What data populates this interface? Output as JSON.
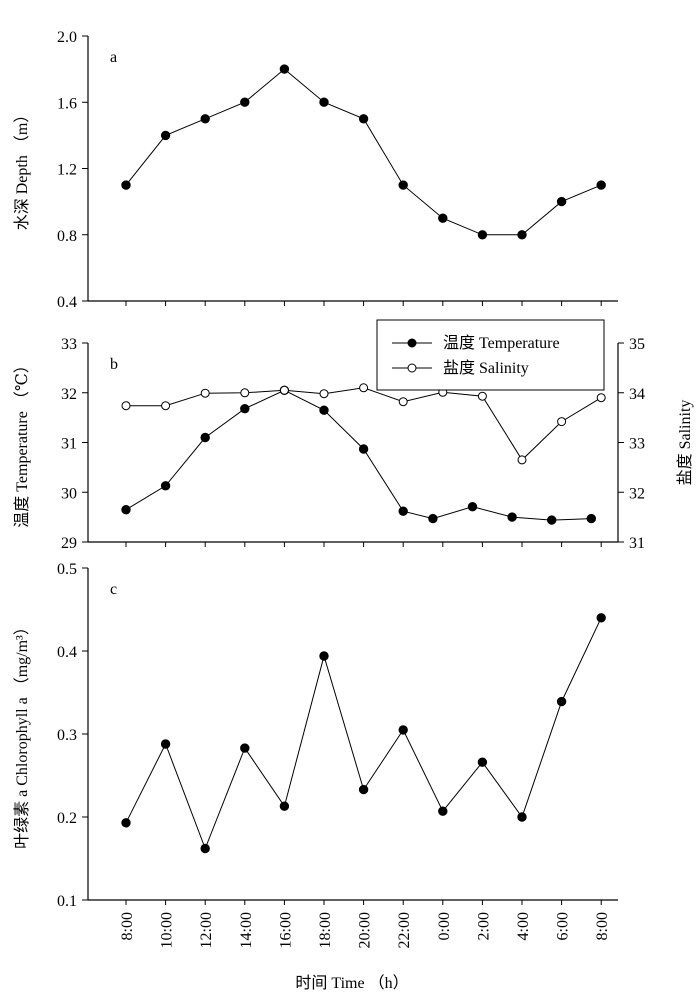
{
  "xlabel": "时间  Time （h）",
  "x_categories": [
    "8:00",
    "10:00",
    "12:00",
    "14:00",
    "16:00",
    "18:00",
    "20:00",
    "22:00",
    "0:00",
    "2:00",
    "4:00",
    "6:00",
    "8:00"
  ],
  "chart_data": [
    {
      "panel": "a",
      "type": "line",
      "ylabel": "水深  Depth （m）",
      "ylim": [
        0.4,
        2.0
      ],
      "yticks": [
        "0.4",
        "0.8",
        "1.2",
        "1.6",
        "2.0"
      ],
      "series": [
        {
          "marker": "filled-circle",
          "points": [
            {
              "x": 0,
              "y": 1.1
            },
            {
              "x": 1,
              "y": 1.4
            },
            {
              "x": 2,
              "y": 1.5
            },
            {
              "x": 3,
              "y": 1.6
            },
            {
              "x": 4,
              "y": 1.8
            },
            {
              "x": 5,
              "y": 1.6
            },
            {
              "x": 6,
              "y": 1.5
            },
            {
              "x": 7,
              "y": 1.1
            },
            {
              "x": 8,
              "y": 0.9
            },
            {
              "x": 9,
              "y": 0.8
            },
            {
              "x": 10,
              "y": 0.8
            },
            {
              "x": 11,
              "y": 1.0
            },
            {
              "x": 12,
              "y": 1.1
            }
          ]
        }
      ]
    },
    {
      "panel": "b",
      "type": "line",
      "ylabel": "温度  Temperature （℃）",
      "ylim": [
        29,
        33
      ],
      "yticks": [
        "29",
        "30",
        "31",
        "32",
        "33"
      ],
      "y2label": "盐度  Salinity",
      "y2lim": [
        31,
        35
      ],
      "y2ticks": [
        "31",
        "32",
        "33",
        "34",
        "35"
      ],
      "legend_position": "top-right",
      "series": [
        {
          "name": "温度  Temperature",
          "marker": "filled-circle",
          "axis": "left",
          "points": [
            {
              "x": 0,
              "y": 29.65
            },
            {
              "x": 1,
              "y": 30.13
            },
            {
              "x": 2,
              "y": 31.1
            },
            {
              "x": 3,
              "y": 31.68
            },
            {
              "x": 4,
              "y": 32.05
            },
            {
              "x": 5,
              "y": 31.65
            },
            {
              "x": 6,
              "y": 30.87
            },
            {
              "x": 7,
              "y": 29.62
            },
            {
              "x": 7.75,
              "y": 29.47
            },
            {
              "x": 8.75,
              "y": 29.71
            },
            {
              "x": 9.75,
              "y": 29.5
            },
            {
              "x": 10.75,
              "y": 29.44
            },
            {
              "x": 11.75,
              "y": 29.47
            }
          ]
        },
        {
          "name": "盐度  Salinity",
          "marker": "open-circle",
          "axis": "right",
          "points": [
            {
              "x": 0,
              "y": 33.74
            },
            {
              "x": 1,
              "y": 33.74
            },
            {
              "x": 2,
              "y": 33.99
            },
            {
              "x": 3,
              "y": 34.0
            },
            {
              "x": 4,
              "y": 34.05
            },
            {
              "x": 5,
              "y": 33.98
            },
            {
              "x": 6,
              "y": 34.1
            },
            {
              "x": 7,
              "y": 33.82
            },
            {
              "x": 8,
              "y": 34.01
            },
            {
              "x": 9,
              "y": 33.93
            },
            {
              "x": 10,
              "y": 32.65
            },
            {
              "x": 11,
              "y": 33.42
            },
            {
              "x": 12,
              "y": 33.9
            }
          ]
        }
      ]
    },
    {
      "panel": "c",
      "type": "line",
      "ylabel": "叶绿素 a  Chlorophyll a （mg/m³）",
      "ylim": [
        0.1,
        0.5
      ],
      "yticks": [
        "0.1",
        "0.2",
        "0.3",
        "0.4",
        "0.5"
      ],
      "series": [
        {
          "marker": "filled-circle",
          "points": [
            {
              "x": 0,
              "y": 0.193
            },
            {
              "x": 1,
              "y": 0.288
            },
            {
              "x": 2,
              "y": 0.162
            },
            {
              "x": 3,
              "y": 0.283
            },
            {
              "x": 4,
              "y": 0.213
            },
            {
              "x": 5,
              "y": 0.394
            },
            {
              "x": 6,
              "y": 0.233
            },
            {
              "x": 7,
              "y": 0.305
            },
            {
              "x": 8,
              "y": 0.207
            },
            {
              "x": 9,
              "y": 0.266
            },
            {
              "x": 10,
              "y": 0.2
            },
            {
              "x": 11,
              "y": 0.339
            },
            {
              "x": 12,
              "y": 0.44
            }
          ]
        }
      ]
    }
  ]
}
